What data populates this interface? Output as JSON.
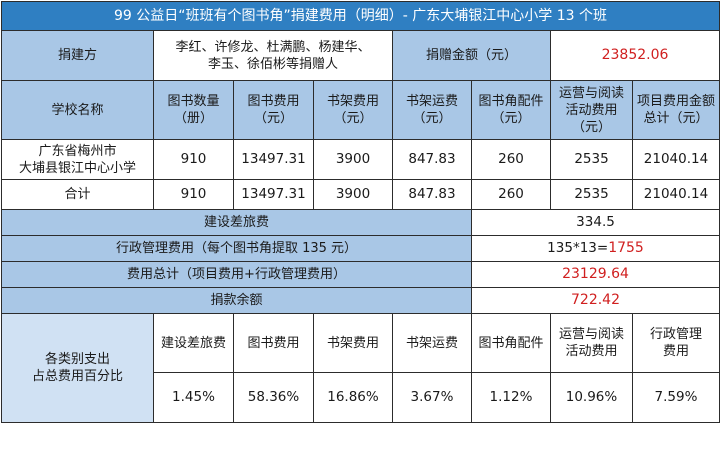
{
  "title": "99 公益日“班班有个图书角”捐建费用（明细）- 广东大埔银江中心小学 13 个班",
  "donor": {
    "label": "捐建方",
    "names": "李红、许修龙、杜满鹏、杨建华、\n李玉、徐佰彬等捐赠人",
    "amount_label": "捐赠金额（元）",
    "amount_value": "23852.06"
  },
  "headers": {
    "school": "学校名称",
    "book_count": "图书数量\n（册）",
    "book_cost": "图书费用\n（元）",
    "shelf_cost": "书架费用\n（元）",
    "shelf_shipping": "书架运费\n（元）",
    "accessories": "图书角配件\n（元）",
    "operation": "运营与阅读\n活动费用（元）",
    "total": "项目费用金额\n总计（元）"
  },
  "rows": [
    {
      "school": "广东省梅州市\n大埔县银江中心小学",
      "book_count": "910",
      "book_cost": "13497.31",
      "shelf_cost": "3900",
      "shelf_shipping": "847.83",
      "accessories": "260",
      "operation": "2535",
      "total": "21040.14"
    },
    {
      "school": "合计",
      "book_count": "910",
      "book_cost": "13497.31",
      "shelf_cost": "3900",
      "shelf_shipping": "847.83",
      "accessories": "260",
      "operation": "2535",
      "total": "21040.14"
    }
  ],
  "summary": {
    "travel_label": "建设差旅费",
    "travel_value": "334.5",
    "admin_label": "行政管理费用（每个图书角提取 135 元）",
    "admin_formula": "135*13=",
    "admin_result": "1755",
    "total_label": "费用总计（项目费用+行政管理费用）",
    "total_value": "23129.64",
    "balance_label": "捐款余额",
    "balance_value": "722.42"
  },
  "percentages": {
    "label": "各类别支出\n占总费用百分比",
    "items": [
      {
        "name": "建设差旅费",
        "value": "1.45%"
      },
      {
        "name": "图书费用",
        "value": "58.36%"
      },
      {
        "name": "书架费用",
        "value": "16.86%"
      },
      {
        "name": "书架运费",
        "value": "3.67%"
      },
      {
        "name": "图书角配件",
        "value": "1.12%"
      },
      {
        "name": "运营与阅读\n活动费用",
        "value": "10.96%"
      },
      {
        "name": "行政管理\n费用",
        "value": "7.59%"
      }
    ]
  },
  "colors": {
    "header_blue": "#2f7fc2",
    "cell_blue": "#a9c7e6",
    "light_blue": "#d0e1f3",
    "highlight_red": "#d01f1f"
  }
}
